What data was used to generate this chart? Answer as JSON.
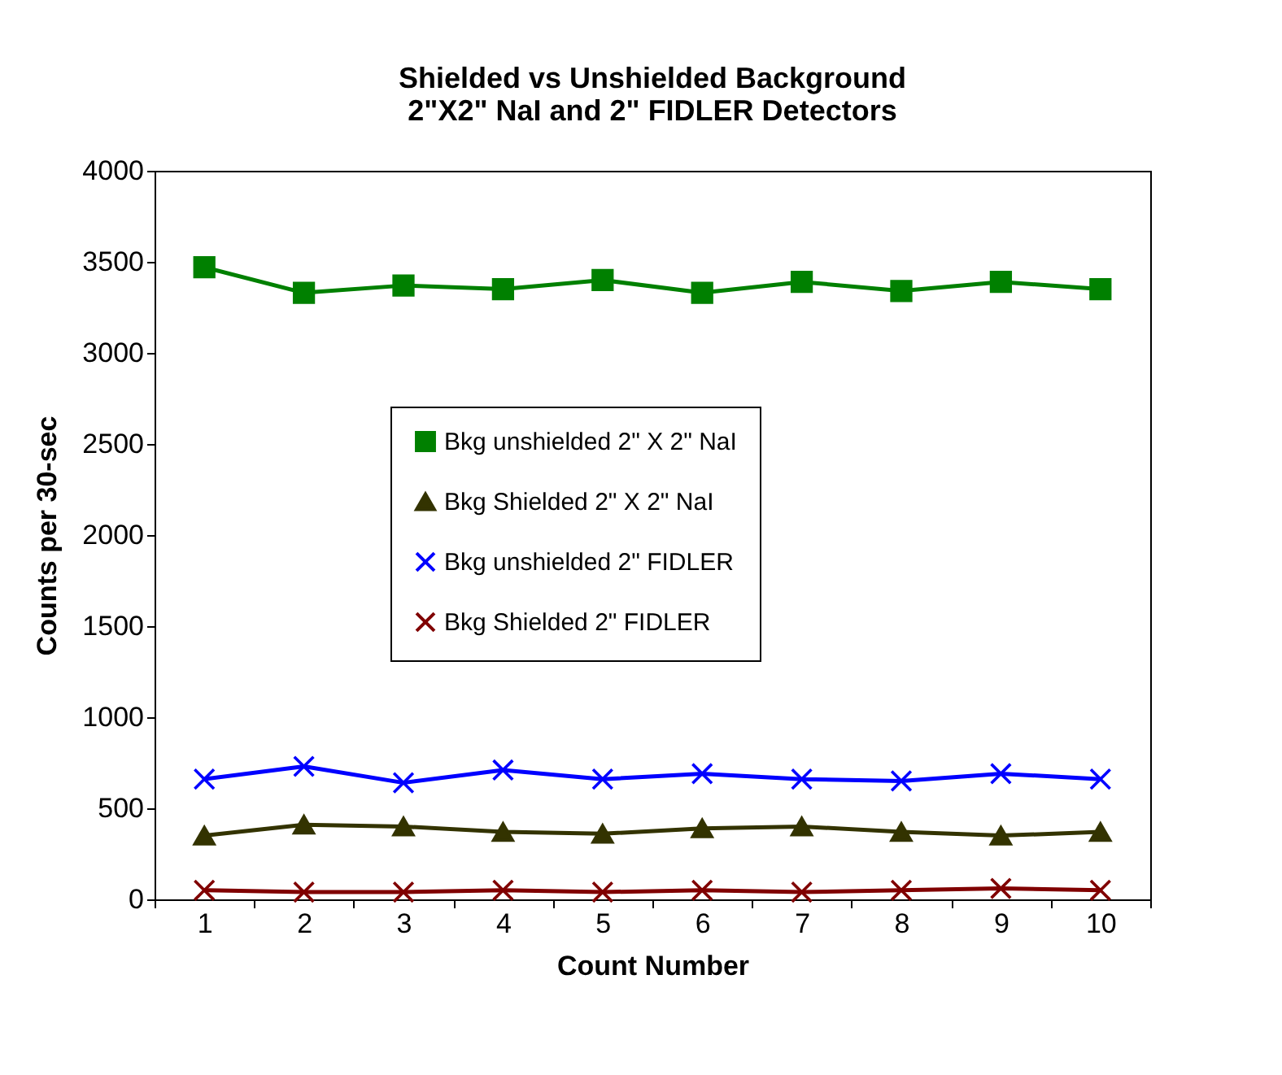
{
  "chart_data": {
    "type": "line",
    "title": [
      "Shielded vs Unshielded Background",
      "2\"X2\" NaI and 2\" FIDLER Detectors"
    ],
    "xlabel": "Count Number",
    "ylabel": "Counts per 30-sec",
    "categories": [
      "1",
      "2",
      "3",
      "4",
      "5",
      "6",
      "7",
      "8",
      "9",
      "10"
    ],
    "series": [
      {
        "name": "Bkg unshielded 2\" X 2\" NaI",
        "color": "#008000",
        "marker": "square",
        "values": [
          3470,
          3330,
          3370,
          3350,
          3400,
          3330,
          3390,
          3340,
          3390,
          3350
        ]
      },
      {
        "name": "Bkg Shielded 2\" X 2\" NaI",
        "color": "#333300",
        "marker": "triangle",
        "values": [
          350,
          410,
          400,
          370,
          360,
          390,
          400,
          370,
          350,
          370
        ]
      },
      {
        "name": "Bkg unshielded 2\" FIDLER",
        "color": "#0000ff",
        "marker": "cross",
        "values": [
          660,
          730,
          640,
          710,
          660,
          690,
          660,
          650,
          690,
          660
        ]
      },
      {
        "name": "Bkg Shielded 2\" FIDLER",
        "color": "#800000",
        "marker": "cross",
        "values": [
          50,
          40,
          40,
          50,
          40,
          50,
          40,
          50,
          60,
          50
        ]
      }
    ],
    "ylim": [
      0,
      4000
    ],
    "yticks": [
      0,
      500,
      1000,
      1500,
      2000,
      2500,
      3000,
      3500,
      4000
    ],
    "grid": false,
    "legend": "center",
    "line_style": "solid"
  }
}
